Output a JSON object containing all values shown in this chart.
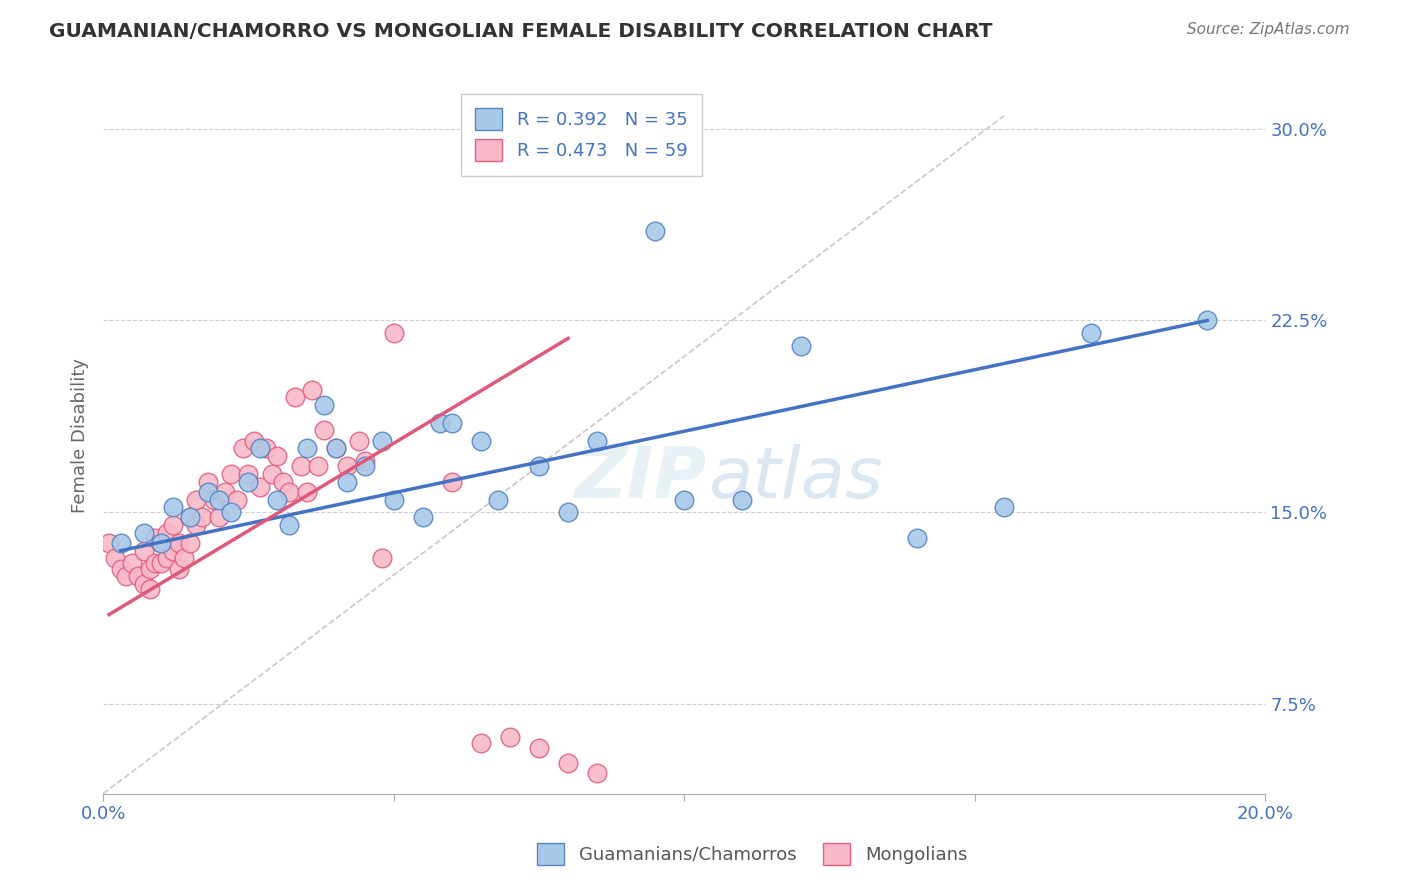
{
  "title": "GUAMANIAN/CHAMORRO VS MONGOLIAN FEMALE DISABILITY CORRELATION CHART",
  "source": "Source: ZipAtlas.com",
  "ylabel": "Female Disability",
  "xlim": [
    0.0,
    0.2
  ],
  "ylim": [
    0.04,
    0.32
  ],
  "xticks": [
    0.0,
    0.05,
    0.1,
    0.15,
    0.2
  ],
  "xtick_labels": [
    "0.0%",
    "",
    "",
    "",
    "20.0%"
  ],
  "yticks": [
    0.075,
    0.15,
    0.225,
    0.3
  ],
  "ytick_labels": [
    "7.5%",
    "15.0%",
    "22.5%",
    "30.0%"
  ],
  "blue_R": 0.392,
  "blue_N": 35,
  "pink_R": 0.473,
  "pink_N": 59,
  "blue_label": "Guamanians/Chamorros",
  "pink_label": "Mongolians",
  "blue_color": "#a8c8e8",
  "pink_color": "#f8b8c8",
  "blue_edge_color": "#5585c5",
  "pink_edge_color": "#e06080",
  "blue_line_color": "#4472c4",
  "pink_line_color": "#e05878",
  "ref_line_color": "#c8c8c8",
  "background_color": "#ffffff",
  "grid_color": "#d0d0d0",
  "blue_scatter_x": [
    0.003,
    0.007,
    0.01,
    0.012,
    0.015,
    0.018,
    0.02,
    0.022,
    0.025,
    0.027,
    0.03,
    0.032,
    0.035,
    0.038,
    0.04,
    0.042,
    0.045,
    0.048,
    0.05,
    0.055,
    0.058,
    0.06,
    0.065,
    0.068,
    0.075,
    0.08,
    0.085,
    0.095,
    0.1,
    0.11,
    0.12,
    0.14,
    0.155,
    0.17,
    0.19
  ],
  "blue_scatter_y": [
    0.138,
    0.142,
    0.138,
    0.152,
    0.148,
    0.158,
    0.155,
    0.15,
    0.162,
    0.175,
    0.155,
    0.145,
    0.175,
    0.192,
    0.175,
    0.162,
    0.168,
    0.178,
    0.155,
    0.148,
    0.185,
    0.185,
    0.178,
    0.155,
    0.168,
    0.15,
    0.178,
    0.26,
    0.155,
    0.155,
    0.215,
    0.14,
    0.152,
    0.22,
    0.225
  ],
  "pink_scatter_x": [
    0.001,
    0.002,
    0.003,
    0.004,
    0.005,
    0.006,
    0.007,
    0.007,
    0.008,
    0.008,
    0.009,
    0.009,
    0.01,
    0.01,
    0.011,
    0.011,
    0.012,
    0.012,
    0.013,
    0.013,
    0.014,
    0.015,
    0.015,
    0.016,
    0.016,
    0.017,
    0.018,
    0.019,
    0.02,
    0.021,
    0.022,
    0.023,
    0.024,
    0.025,
    0.026,
    0.027,
    0.028,
    0.029,
    0.03,
    0.031,
    0.032,
    0.033,
    0.034,
    0.035,
    0.036,
    0.037,
    0.038,
    0.04,
    0.042,
    0.044,
    0.045,
    0.048,
    0.05,
    0.06,
    0.065,
    0.07,
    0.075,
    0.08,
    0.085
  ],
  "pink_scatter_y": [
    0.138,
    0.132,
    0.128,
    0.125,
    0.13,
    0.125,
    0.122,
    0.135,
    0.12,
    0.128,
    0.13,
    0.14,
    0.13,
    0.138,
    0.132,
    0.142,
    0.135,
    0.145,
    0.128,
    0.138,
    0.132,
    0.138,
    0.148,
    0.145,
    0.155,
    0.148,
    0.162,
    0.155,
    0.148,
    0.158,
    0.165,
    0.155,
    0.175,
    0.165,
    0.178,
    0.16,
    0.175,
    0.165,
    0.172,
    0.162,
    0.158,
    0.195,
    0.168,
    0.158,
    0.198,
    0.168,
    0.182,
    0.175,
    0.168,
    0.178,
    0.17,
    0.132,
    0.22,
    0.162,
    0.06,
    0.062,
    0.058,
    0.052,
    0.048
  ],
  "blue_trendline_x": [
    0.003,
    0.19
  ],
  "blue_trendline_y": [
    0.135,
    0.225
  ],
  "pink_trendline_x": [
    0.001,
    0.08
  ],
  "pink_trendline_y": [
    0.11,
    0.218
  ],
  "ref_line_x": [
    0.0,
    0.155
  ],
  "ref_line_y": [
    0.04,
    0.305
  ]
}
